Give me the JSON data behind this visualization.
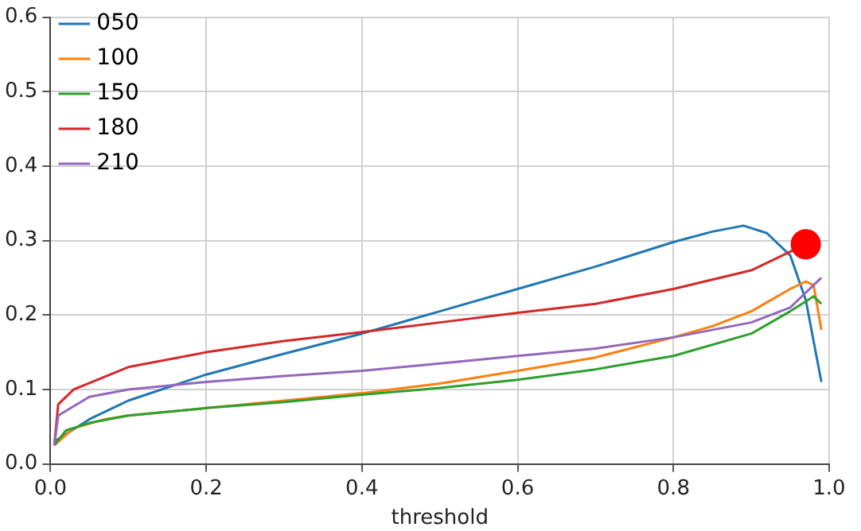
{
  "chart_data": {
    "type": "line",
    "xlabel": "threshold",
    "xlim": [
      0,
      1
    ],
    "ylim": [
      0,
      0.6
    ],
    "xticks": [
      {
        "value": 0,
        "label": "0.0"
      },
      {
        "value": 0.2,
        "label": "0.2"
      },
      {
        "value": 0.4,
        "label": "0.4"
      },
      {
        "value": 0.6,
        "label": "0.6"
      },
      {
        "value": 0.8,
        "label": "0.8"
      },
      {
        "value": 1,
        "label": "1.0"
      }
    ],
    "yticks": [
      {
        "value": 0,
        "label": "0.0"
      },
      {
        "value": 0.1,
        "label": "0.1"
      },
      {
        "value": 0.2,
        "label": "0.2"
      },
      {
        "value": 0.3,
        "label": "0.3"
      },
      {
        "value": 0.4,
        "label": "0.4"
      },
      {
        "value": 0.5,
        "label": "0.5"
      },
      {
        "value": 0.6,
        "label": "0.6"
      }
    ],
    "grid": true,
    "legend": "top left",
    "marker": "none",
    "line_style": "solid",
    "series": [
      {
        "name": "050",
        "color": "#1f77b4",
        "x": [
          0.005,
          0.05,
          0.1,
          0.2,
          0.3,
          0.4,
          0.5,
          0.6,
          0.7,
          0.8,
          0.85,
          0.89,
          0.92,
          0.95,
          0.97,
          0.99
        ],
        "values": [
          0.03,
          0.06,
          0.085,
          0.12,
          0.148,
          0.175,
          0.205,
          0.235,
          0.265,
          0.298,
          0.312,
          0.32,
          0.31,
          0.28,
          0.22,
          0.11
        ]
      },
      {
        "name": "100",
        "color": "#ff7f0e",
        "x": [
          0.005,
          0.03,
          0.07,
          0.1,
          0.2,
          0.3,
          0.4,
          0.5,
          0.6,
          0.7,
          0.8,
          0.85,
          0.9,
          0.95,
          0.97,
          0.98,
          0.99
        ],
        "values": [
          0.025,
          0.048,
          0.06,
          0.065,
          0.075,
          0.085,
          0.095,
          0.108,
          0.125,
          0.143,
          0.17,
          0.185,
          0.205,
          0.235,
          0.245,
          0.24,
          0.18
        ]
      },
      {
        "name": "150",
        "color": "#2ca02c",
        "x": [
          0.005,
          0.02,
          0.05,
          0.1,
          0.2,
          0.3,
          0.4,
          0.5,
          0.6,
          0.7,
          0.8,
          0.9,
          0.95,
          0.98,
          0.99
        ],
        "values": [
          0.025,
          0.045,
          0.055,
          0.065,
          0.075,
          0.083,
          0.093,
          0.102,
          0.113,
          0.127,
          0.145,
          0.175,
          0.205,
          0.225,
          0.215
        ]
      },
      {
        "name": "180",
        "color": "#d62728",
        "x": [
          0.005,
          0.01,
          0.03,
          0.1,
          0.2,
          0.3,
          0.4,
          0.5,
          0.6,
          0.7,
          0.8,
          0.9,
          0.95,
          0.97
        ],
        "values": [
          0.025,
          0.08,
          0.1,
          0.13,
          0.15,
          0.165,
          0.177,
          0.19,
          0.203,
          0.215,
          0.235,
          0.26,
          0.285,
          0.297
        ]
      },
      {
        "name": "210",
        "color": "#9467bd",
        "x": [
          0.005,
          0.01,
          0.05,
          0.1,
          0.2,
          0.3,
          0.4,
          0.5,
          0.6,
          0.7,
          0.8,
          0.9,
          0.95,
          0.99
        ],
        "values": [
          0.025,
          0.065,
          0.09,
          0.1,
          0.11,
          0.118,
          0.125,
          0.135,
          0.145,
          0.155,
          0.17,
          0.19,
          0.21,
          0.25
        ]
      },
      {
        "type": "scatter",
        "marker": "circle",
        "color": "#ff0000",
        "x": [
          0.97
        ],
        "values": [
          0.295
        ]
      }
    ]
  }
}
